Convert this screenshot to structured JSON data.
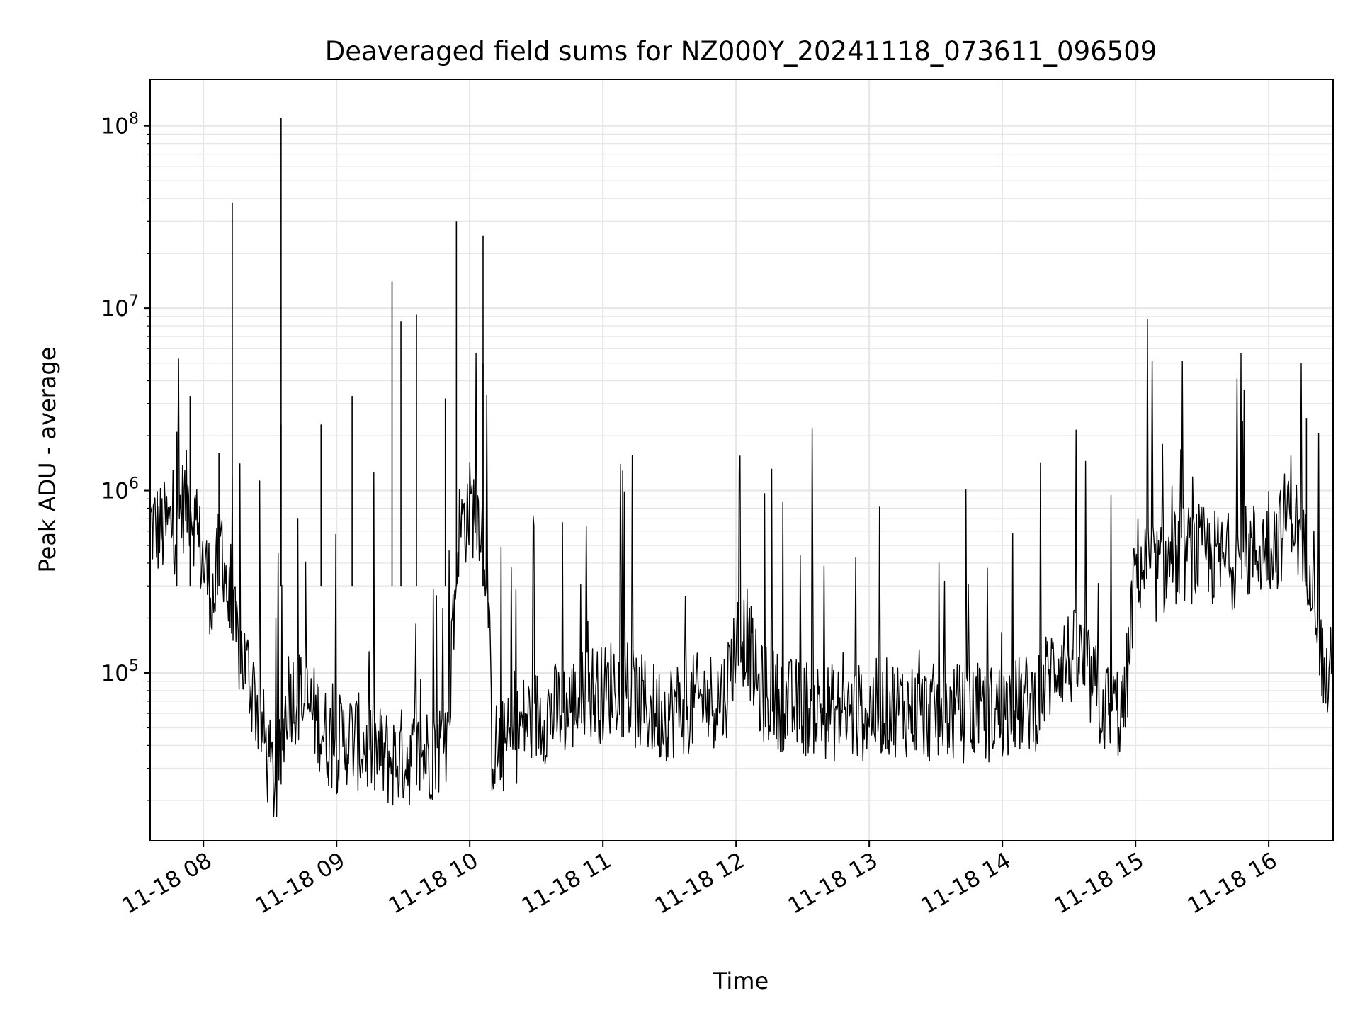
{
  "chart_data": {
    "type": "line",
    "title": "Deaveraged field sums for NZ000Y_20241118_073611_096509",
    "xlabel": "Time",
    "ylabel": "Peak ADU - average",
    "yscale": "log",
    "xlim": [
      "2024-11-18T07:36",
      "2024-11-18T16:29"
    ],
    "ylim": [
      12000,
      180000000
    ],
    "grid": true,
    "line_color": "#000000",
    "grid_color": "#e6e6e6",
    "x_ticks": [
      {
        "time": "2024-11-18T08:00",
        "label": "11-18 08"
      },
      {
        "time": "2024-11-18T09:00",
        "label": "11-18 09"
      },
      {
        "time": "2024-11-18T10:00",
        "label": "11-18 10"
      },
      {
        "time": "2024-11-18T11:00",
        "label": "11-18 11"
      },
      {
        "time": "2024-11-18T12:00",
        "label": "11-18 12"
      },
      {
        "time": "2024-11-18T13:00",
        "label": "11-18 13"
      },
      {
        "time": "2024-11-18T14:00",
        "label": "11-18 14"
      },
      {
        "time": "2024-11-18T15:00",
        "label": "11-18 15"
      },
      {
        "time": "2024-11-18T16:00",
        "label": "11-18 16"
      }
    ],
    "y_ticks": [
      {
        "value": 100000,
        "base": "10",
        "exp": "5"
      },
      {
        "value": 1000000,
        "base": "10",
        "exp": "6"
      },
      {
        "value": 10000000,
        "base": "10",
        "exp": "7"
      },
      {
        "value": 100000000,
        "base": "10",
        "exp": "8"
      }
    ],
    "series": [
      {
        "x": [
          "2024-11-18T07:36",
          "2024-11-18T07:41",
          "2024-11-18T07:47",
          "2024-11-18T07:52",
          "2024-11-18T07:55",
          "2024-11-18T07:58",
          "2024-11-18T08:00",
          "2024-11-18T08:05",
          "2024-11-18T08:08",
          "2024-11-18T08:12",
          "2024-11-18T08:15",
          "2024-11-18T08:20",
          "2024-11-18T08:25",
          "2024-11-18T08:30",
          "2024-11-18T08:32",
          "2024-11-18T08:34",
          "2024-11-18T08:35",
          "2024-11-18T08:38",
          "2024-11-18T08:45",
          "2024-11-18T08:52",
          "2024-11-18T08:55",
          "2024-11-18T09:00",
          "2024-11-18T09:05",
          "2024-11-18T09:15",
          "2024-11-18T09:25",
          "2024-11-18T09:30",
          "2024-11-18T09:35",
          "2024-11-18T09:45",
          "2024-11-18T09:50",
          "2024-11-18T09:55",
          "2024-11-18T10:00",
          "2024-11-18T10:05",
          "2024-11-18T10:08",
          "2024-11-18T10:10",
          "2024-11-18T10:12",
          "2024-11-18T10:18",
          "2024-11-18T10:25",
          "2024-11-18T10:35",
          "2024-11-18T10:45",
          "2024-11-18T10:55",
          "2024-11-18T11:00",
          "2024-11-18T11:05",
          "2024-11-18T11:15",
          "2024-11-18T11:25",
          "2024-11-18T11:35",
          "2024-11-18T11:45",
          "2024-11-18T11:55",
          "2024-11-18T12:00",
          "2024-11-18T12:05",
          "2024-11-18T12:10",
          "2024-11-18T12:15",
          "2024-11-18T12:25",
          "2024-11-18T12:35",
          "2024-11-18T12:45",
          "2024-11-18T12:55",
          "2024-11-18T13:05",
          "2024-11-18T13:15",
          "2024-11-18T13:25",
          "2024-11-18T13:35",
          "2024-11-18T13:45",
          "2024-11-18T13:55",
          "2024-11-18T14:05",
          "2024-11-18T14:15",
          "2024-11-18T14:25",
          "2024-11-18T14:35",
          "2024-11-18T14:45",
          "2024-11-18T14:55",
          "2024-11-18T15:00",
          "2024-11-18T15:10",
          "2024-11-18T15:20",
          "2024-11-18T15:30",
          "2024-11-18T15:40",
          "2024-11-18T15:50",
          "2024-11-18T16:00",
          "2024-11-18T16:05",
          "2024-11-18T16:10",
          "2024-11-18T16:15",
          "2024-11-18T16:20",
          "2024-11-18T16:25",
          "2024-11-18T16:29"
        ],
        "values": [
          650000,
          600000,
          650000,
          900000,
          800000,
          500000,
          400000,
          250000,
          600000,
          200000,
          150000,
          100000,
          60000,
          30000,
          25000,
          28000,
          35000,
          80000,
          70000,
          55000,
          45000,
          40000,
          45000,
          38000,
          33000,
          35000,
          34000,
          38000,
          45000,
          600000,
          800000,
          750000,
          350000,
          40000,
          38000,
          40000,
          55000,
          60000,
          65000,
          80000,
          75000,
          90000,
          70000,
          60000,
          65000,
          70000,
          75000,
          150000,
          160000,
          80000,
          75000,
          65000,
          65000,
          60000,
          60000,
          65000,
          65000,
          60000,
          60000,
          60000,
          60000,
          65000,
          70000,
          120000,
          120000,
          65000,
          60000,
          400000,
          350000,
          450000,
          450000,
          400000,
          450000,
          500000,
          550000,
          900000,
          450000,
          400000,
          90000,
          100000
        ]
      }
    ],
    "peaks": [
      {
        "x": "2024-11-18T07:48",
        "value": 2100000
      },
      {
        "x": "2024-11-18T07:54",
        "value": 3300000
      },
      {
        "x": "2024-11-18T08:07",
        "value": 1600000
      },
      {
        "x": "2024-11-18T08:13",
        "value": 38000000
      },
      {
        "x": "2024-11-18T08:35",
        "value": 2300000
      },
      {
        "x": "2024-11-18T08:35",
        "value": 110000000
      },
      {
        "x": "2024-11-18T08:53",
        "value": 2300000
      },
      {
        "x": "2024-11-18T09:07",
        "value": 3300000
      },
      {
        "x": "2024-11-18T09:25",
        "value": 14000000
      },
      {
        "x": "2024-11-18T09:29",
        "value": 8500000
      },
      {
        "x": "2024-11-18T09:36",
        "value": 9200000
      },
      {
        "x": "2024-11-18T09:49",
        "value": 3200000
      },
      {
        "x": "2024-11-18T09:54",
        "value": 30000000
      },
      {
        "x": "2024-11-18T10:06",
        "value": 25000000
      },
      {
        "x": "2024-11-18T10:06",
        "value": 5000000
      },
      {
        "x": "2024-11-18T16:17",
        "value": 2500000
      }
    ]
  }
}
